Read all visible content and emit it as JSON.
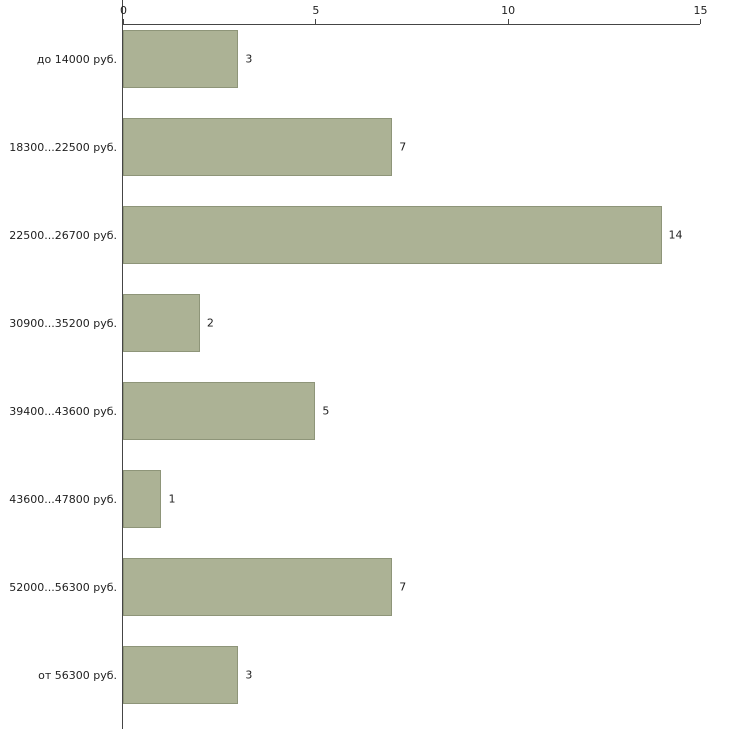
{
  "chart_data": {
    "type": "bar",
    "orientation": "horizontal",
    "title": "",
    "xlabel": "",
    "ylabel": "",
    "categories": [
      "до 14000 руб.",
      "18300...22500 руб.",
      "22500...26700 руб.",
      "30900...35200 руб.",
      "39400...43600 руб.",
      "43600...47800 руб.",
      "52000...56300 руб.",
      "от 56300 руб."
    ],
    "values": [
      3,
      7,
      14,
      2,
      5,
      1,
      7,
      3
    ],
    "xlim": [
      0,
      15
    ],
    "x_ticks": [
      "0",
      "5",
      "10",
      "15"
    ],
    "x_tick_values": [
      0,
      5,
      10,
      15
    ],
    "grid": false,
    "legend": false,
    "x_axis_position": "top",
    "bar_color": "#acb295",
    "bar_border_color": "#8e9579",
    "axis_color": "#454545",
    "background_color": "#ffffff"
  }
}
